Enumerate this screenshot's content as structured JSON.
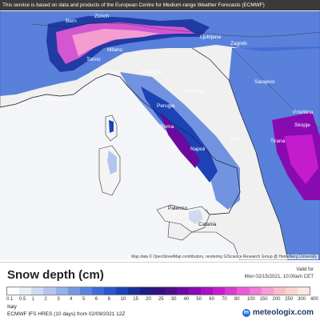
{
  "header": {
    "disclaimer": "This service is based on data and products of the European Centre for Medium-range Weather Forecasts (ECMWF)"
  },
  "map": {
    "places": [
      {
        "id": "bern",
        "name": "Bern"
      },
      {
        "id": "zurich",
        "name": "Zürich"
      },
      {
        "id": "milano",
        "name": "Milano"
      },
      {
        "id": "torino",
        "name": "Torino"
      },
      {
        "id": "genova",
        "name": "Genova"
      },
      {
        "id": "marseille",
        "name": "Marseille"
      },
      {
        "id": "ljubljana",
        "name": "Ljubljana"
      },
      {
        "id": "zagreb",
        "name": "Zagreb"
      },
      {
        "id": "bologna",
        "name": "Bologna"
      },
      {
        "id": "ancona",
        "name": "Ancona"
      },
      {
        "id": "perugia",
        "name": "Perugia"
      },
      {
        "id": "roma",
        "name": "Roma"
      },
      {
        "id": "napoli",
        "name": "Napoli"
      },
      {
        "id": "bari",
        "name": "Bari"
      },
      {
        "id": "sarajevo",
        "name": "Sarajevo"
      },
      {
        "id": "pristina",
        "name": "Prishtina"
      },
      {
        "id": "skopje",
        "name": "Skopje"
      },
      {
        "id": "tirana",
        "name": "Tirana"
      },
      {
        "id": "palermo",
        "name": "Palermo"
      },
      {
        "id": "catania",
        "name": "Catania"
      }
    ],
    "attribution": "Map data © OpenStreetMap contributors, rendering GIScience Research Group @ Heidelberg University"
  },
  "legend": {
    "title": "Snow depth (cm)",
    "valid_label": "Valid for",
    "valid_value": "Mon 02/15/2021, 10:00am CET",
    "scale_labels": [
      "0.1",
      "0.5",
      "1",
      "2",
      "3",
      "4",
      "5",
      "6",
      "8",
      "10",
      "15",
      "20",
      "25",
      "30",
      "40",
      "50",
      "60",
      "70",
      "80",
      "100",
      "150",
      "200",
      "250",
      "300",
      "400"
    ],
    "scale_colors": [
      "#ffffff",
      "#e8edf8",
      "#cfd9f2",
      "#b3c5ee",
      "#94b0ea",
      "#7598e2",
      "#5a82dc",
      "#3e6cd6",
      "#2a57cc",
      "#1c42b6",
      "#162f9a",
      "#1d1d84",
      "#34107e",
      "#4d0c8c",
      "#6a0a9e",
      "#8a0ab2",
      "#aa10c4",
      "#c41ccc",
      "#d83ad0",
      "#e85ad6",
      "#f07ad6",
      "#f59cd0",
      "#f9bccb",
      "#fad5cf",
      "#fce8e2"
    ]
  },
  "footer": {
    "region": "Italy",
    "model": "ECMWF IFS HRES (10 days) from 02/09/2021 12Z",
    "brand": "meteologix.com"
  }
}
